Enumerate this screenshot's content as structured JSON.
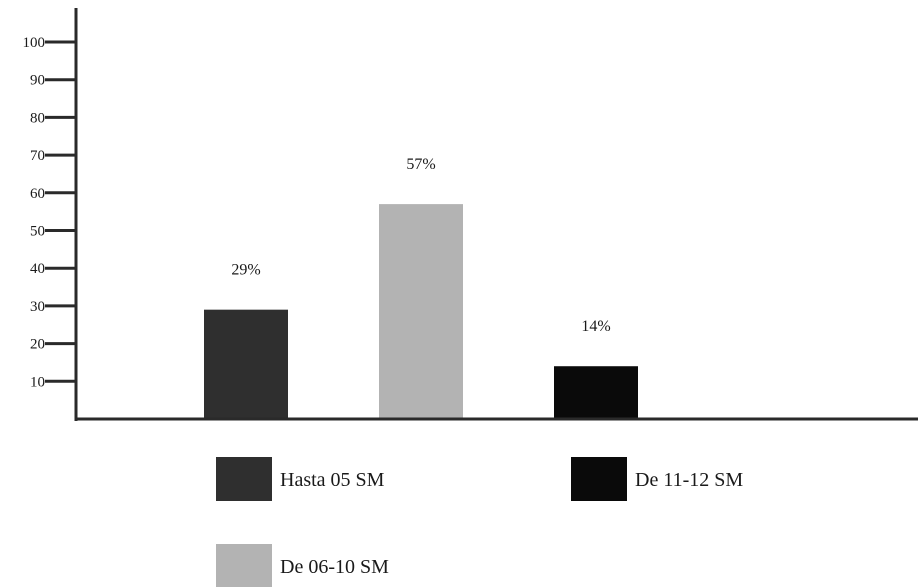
{
  "chart_data": {
    "type": "bar",
    "categories": [
      "Hasta 05 SM",
      "De 06-10 SM",
      "De 11-12 SM"
    ],
    "values": [
      29,
      57,
      14
    ],
    "value_labels": [
      "29%",
      "57%",
      "14%"
    ],
    "ylim": [
      0,
      100
    ],
    "yticks": [
      "10",
      "20",
      "30",
      "40",
      "50",
      "60",
      "70",
      "80",
      "90",
      "100"
    ],
    "grid": false,
    "legend_placement": "bottom",
    "colors": [
      "#2f2f2f",
      "#b3b3b3",
      "#0a0a0a"
    ],
    "axis_color": "#2a2a2a"
  }
}
